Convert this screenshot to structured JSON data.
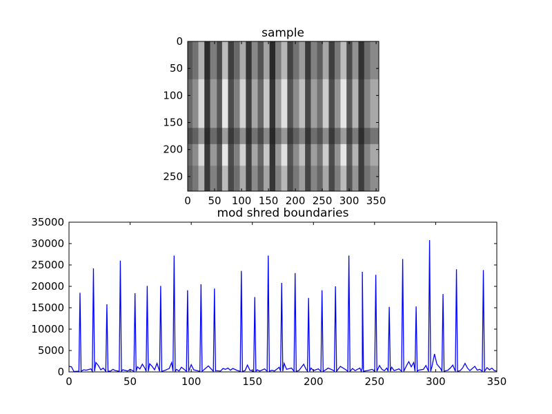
{
  "chart_data": [
    {
      "type": "image",
      "title": "sample",
      "xlim": [
        0,
        355
      ],
      "ylim": [
        0,
        277
      ],
      "x_ticks": [
        "0",
        "50",
        "100",
        "150",
        "200",
        "250",
        "300",
        "350"
      ],
      "y_ticks": [
        "0",
        "50",
        "100",
        "150",
        "200",
        "250"
      ],
      "strip_boundaries": [
        0,
        9,
        20,
        31,
        42,
        54,
        64,
        75,
        86,
        97,
        108,
        119,
        130,
        141,
        152,
        163,
        174,
        185,
        196,
        207,
        218,
        229,
        240,
        251,
        262,
        273,
        284,
        295,
        306,
        317,
        328,
        339,
        355
      ],
      "strip_brightness": [
        0.42,
        0.55,
        0.85,
        0.22,
        0.6,
        0.35,
        0.9,
        0.3,
        0.5,
        0.82,
        0.25,
        0.65,
        0.4,
        0.78,
        0.2,
        0.6,
        0.88,
        0.33,
        0.55,
        0.75,
        0.28,
        0.62,
        0.45,
        0.8,
        0.3,
        0.58,
        0.9,
        0.36,
        0.7,
        0.24,
        0.52,
        0.66
      ],
      "colormap": "gray"
    },
    {
      "type": "line",
      "title": "mod shred boundaries",
      "xlim": [
        0,
        350
      ],
      "ylim": [
        0,
        35000
      ],
      "x_ticks": [
        "0",
        "50",
        "100",
        "150",
        "200",
        "250",
        "300",
        "350"
      ],
      "y_ticks": [
        "0",
        "5000",
        "10000",
        "15000",
        "20000",
        "25000",
        "30000",
        "35000"
      ],
      "color": "#0000ff",
      "baseline": [
        [
          0,
          1300
        ],
        [
          2,
          1200
        ],
        [
          4,
          100
        ],
        [
          12,
          500
        ],
        [
          14,
          400
        ],
        [
          18,
          700
        ],
        [
          22,
          2200
        ],
        [
          24,
          1500
        ],
        [
          26,
          500
        ],
        [
          28,
          900
        ],
        [
          34,
          200
        ],
        [
          36,
          600
        ],
        [
          38,
          300
        ],
        [
          44,
          500
        ],
        [
          48,
          200
        ],
        [
          50,
          600
        ],
        [
          56,
          1200
        ],
        [
          58,
          700
        ],
        [
          60,
          1800
        ],
        [
          62,
          900
        ],
        [
          66,
          1900
        ],
        [
          68,
          1300
        ],
        [
          70,
          500
        ],
        [
          72,
          2000
        ],
        [
          78,
          300
        ],
        [
          82,
          800
        ],
        [
          84,
          2200
        ],
        [
          88,
          600
        ],
        [
          90,
          200
        ],
        [
          92,
          1100
        ],
        [
          95,
          400
        ],
        [
          100,
          1700
        ],
        [
          102,
          500
        ],
        [
          106,
          200
        ],
        [
          110,
          400
        ],
        [
          114,
          1400
        ],
        [
          120,
          300
        ],
        [
          124,
          200
        ],
        [
          126,
          800
        ],
        [
          128,
          600
        ],
        [
          130,
          900
        ],
        [
          132,
          400
        ],
        [
          134,
          800
        ],
        [
          138,
          300
        ],
        [
          144,
          300
        ],
        [
          146,
          1600
        ],
        [
          148,
          400
        ],
        [
          154,
          500
        ],
        [
          156,
          200
        ],
        [
          160,
          700
        ],
        [
          166,
          400
        ],
        [
          168,
          200
        ],
        [
          172,
          1100
        ],
        [
          176,
          2000
        ],
        [
          178,
          600
        ],
        [
          182,
          900
        ],
        [
          188,
          300
        ],
        [
          192,
          1800
        ],
        [
          194,
          600
        ],
        [
          198,
          900
        ],
        [
          200,
          300
        ],
        [
          204,
          700
        ],
        [
          210,
          500
        ],
        [
          212,
          900
        ],
        [
          216,
          400
        ],
        [
          222,
          1300
        ],
        [
          226,
          600
        ],
        [
          232,
          800
        ],
        [
          234,
          300
        ],
        [
          238,
          900
        ],
        [
          240,
          1000
        ],
        [
          244,
          300
        ],
        [
          248,
          600
        ],
        [
          254,
          1500
        ],
        [
          256,
          600
        ],
        [
          258,
          300
        ],
        [
          260,
          900
        ],
        [
          264,
          1100
        ],
        [
          266,
          300
        ],
        [
          270,
          700
        ],
        [
          276,
          1400
        ],
        [
          278,
          2400
        ],
        [
          280,
          1200
        ],
        [
          282,
          2200
        ],
        [
          286,
          400
        ],
        [
          290,
          600
        ],
        [
          292,
          1500
        ],
        [
          297,
          1300
        ],
        [
          299,
          4200
        ],
        [
          301,
          1800
        ],
        [
          304,
          800
        ],
        [
          310,
          400
        ],
        [
          312,
          900
        ],
        [
          314,
          1600
        ],
        [
          320,
          300
        ],
        [
          322,
          900
        ],
        [
          324,
          2000
        ],
        [
          326,
          900
        ],
        [
          328,
          300
        ],
        [
          332,
          1300
        ],
        [
          334,
          400
        ],
        [
          336,
          600
        ],
        [
          342,
          1000
        ],
        [
          344,
          500
        ],
        [
          346,
          900
        ],
        [
          348,
          300
        ],
        [
          350,
          200
        ]
      ],
      "peaks": [
        [
          9,
          18500
        ],
        [
          20,
          24200
        ],
        [
          31,
          15800
        ],
        [
          42,
          26000
        ],
        [
          54,
          18400
        ],
        [
          64,
          20100
        ],
        [
          75,
          20100
        ],
        [
          86,
          27200
        ],
        [
          97,
          19100
        ],
        [
          108,
          20500
        ],
        [
          119,
          19500
        ],
        [
          141,
          23600
        ],
        [
          152,
          17500
        ],
        [
          163,
          27200
        ],
        [
          174,
          20800
        ],
        [
          185,
          23100
        ],
        [
          196,
          17300
        ],
        [
          207,
          19100
        ],
        [
          218,
          20000
        ],
        [
          229,
          27200
        ],
        [
          240,
          23400
        ],
        [
          251,
          22700
        ],
        [
          262,
          15200
        ],
        [
          273,
          26400
        ],
        [
          284,
          15300
        ],
        [
          295,
          30800
        ],
        [
          306,
          18200
        ],
        [
          317,
          24000
        ],
        [
          339,
          23800
        ]
      ]
    }
  ]
}
